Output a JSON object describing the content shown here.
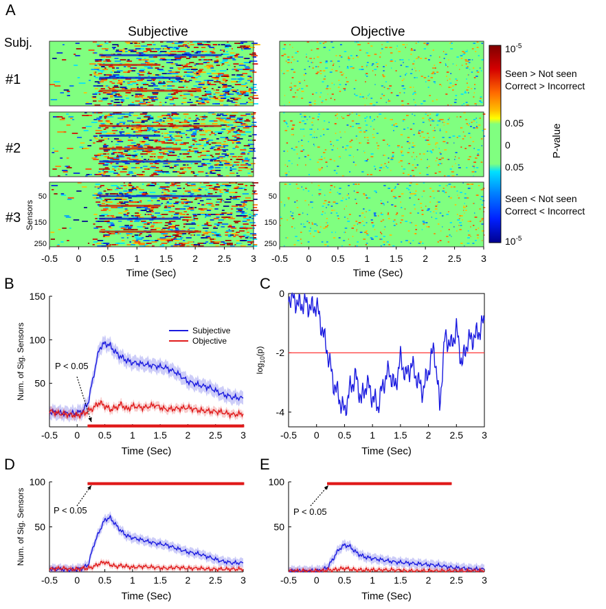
{
  "panels": {
    "A": "A",
    "B": "B",
    "C": "C",
    "D": "D",
    "E": "E"
  },
  "panel_a": {
    "col_left": "Subjective",
    "col_right": "Objective",
    "subj_label": "Subj.",
    "rows": [
      "#1",
      "#2",
      "#3"
    ],
    "sensor_axis_label": "Sensors",
    "sensor_ticks": [
      "50",
      "150",
      "250"
    ],
    "time_ticks": [
      "-0.5",
      "0",
      "0.5",
      "1",
      "1.5",
      "2",
      "2.5",
      "3"
    ],
    "xlabel": "Time (Sec)",
    "colorbar": {
      "top": "10",
      "top_exp": "-5",
      "upper_mid": "0.05",
      "zero": "0",
      "lower_mid": "0.05",
      "bottom": "10",
      "bottom_exp": "-5",
      "label": "P-value",
      "upper_text_1": "Seen > Not seen",
      "upper_text_2": "Correct > Incorrect",
      "lower_text_1": "Seen < Not seen",
      "lower_text_2": "Correct < Incorrect",
      "colors": [
        "#7f0000",
        "#d40000",
        "#ff6a00",
        "#ffc000",
        "#ffff00",
        "#80ff80",
        "#80ff80",
        "#00d0ff",
        "#0080ff",
        "#0020ff",
        "#00008f"
      ]
    }
  },
  "chart_data": [
    {
      "id": "B",
      "type": "line",
      "xlabel": "Time (Sec)",
      "ylabel": "Num. of Sig. Sensors",
      "xlim": [
        -0.5,
        3
      ],
      "ylim": [
        0,
        150
      ],
      "xticks": [
        "-0.5",
        "0",
        "0.5",
        "1",
        "1.5",
        "2",
        "2.5",
        "3"
      ],
      "yticks": [
        "50",
        "100",
        "150"
      ],
      "legend": "top-right",
      "annotation": "P < 0.05",
      "series": [
        {
          "name": "Subjective",
          "color": "#1a1adf",
          "x": [
            -0.5,
            -0.3,
            -0.1,
            0.0,
            0.1,
            0.2,
            0.3,
            0.4,
            0.5,
            0.6,
            0.7,
            0.8,
            0.9,
            1.0,
            1.2,
            1.4,
            1.6,
            1.8,
            2.0,
            2.2,
            2.4,
            2.6,
            2.8,
            3.0
          ],
          "y": [
            17,
            16,
            15,
            16,
            18,
            28,
            60,
            90,
            96,
            93,
            85,
            80,
            76,
            74,
            72,
            70,
            68,
            62,
            52,
            48,
            45,
            38,
            34,
            33
          ]
        },
        {
          "name": "Objective",
          "color": "#e01a1a",
          "x": [
            -0.5,
            -0.3,
            -0.1,
            0.0,
            0.1,
            0.2,
            0.3,
            0.4,
            0.5,
            0.6,
            0.7,
            0.8,
            0.9,
            1.0,
            1.2,
            1.4,
            1.6,
            1.8,
            2.0,
            2.2,
            2.4,
            2.6,
            2.8,
            3.0
          ],
          "y": [
            18,
            15,
            14,
            13,
            15,
            18,
            22,
            28,
            24,
            20,
            22,
            26,
            20,
            24,
            22,
            25,
            20,
            21,
            22,
            19,
            18,
            17,
            14,
            15
          ]
        }
      ],
      "sig_from": 0.2,
      "sig_to": 3.0,
      "sig_level": 1
    },
    {
      "id": "C",
      "type": "line",
      "xlabel": "Time (Sec)",
      "ylabel": "log10(p)",
      "xlim": [
        -0.5,
        3
      ],
      "ylim": [
        -4.5,
        0
      ],
      "xticks": [
        "-0.5",
        "0",
        "0.5",
        "1",
        "1.5",
        "2",
        "2.5",
        "3"
      ],
      "yticks": [
        "0",
        "-2",
        "-4"
      ],
      "threshold": -2,
      "series": [
        {
          "name": "",
          "color": "#1a1adf",
          "x": [
            -0.5,
            -0.4,
            -0.3,
            -0.2,
            -0.1,
            0.0,
            0.1,
            0.2,
            0.3,
            0.4,
            0.5,
            0.6,
            0.7,
            0.8,
            0.9,
            1.0,
            1.1,
            1.2,
            1.3,
            1.4,
            1.5,
            1.6,
            1.7,
            1.8,
            1.9,
            2.0,
            2.1,
            2.2,
            2.3,
            2.4,
            2.5,
            2.6,
            2.7,
            2.8,
            2.9,
            3.0
          ],
          "y": [
            -0.1,
            -0.2,
            -0.4,
            -0.3,
            -0.5,
            -0.4,
            -1.2,
            -2.0,
            -3.0,
            -3.5,
            -4.0,
            -3.2,
            -2.8,
            -3.6,
            -3.0,
            -3.5,
            -3.8,
            -3.0,
            -2.6,
            -3.2,
            -2.2,
            -2.8,
            -2.4,
            -2.9,
            -3.3,
            -2.6,
            -1.8,
            -3.8,
            -1.4,
            -1.8,
            -1.2,
            -2.4,
            -1.6,
            -1.5,
            -1.3,
            -0.9
          ]
        }
      ]
    },
    {
      "id": "D",
      "type": "line",
      "xlabel": "Time (Sec)",
      "ylabel": "Num. of Sig. Sensors",
      "xlim": [
        -0.5,
        3
      ],
      "ylim": [
        0,
        100
      ],
      "xticks": [
        "-0.5",
        "0",
        "0.5",
        "1",
        "1.5",
        "2",
        "2.5",
        "3"
      ],
      "yticks": [
        "50",
        "100"
      ],
      "annotation": "P < 0.05",
      "series": [
        {
          "name": "Subjective",
          "color": "#1a1adf",
          "x": [
            -0.5,
            -0.3,
            -0.1,
            0.0,
            0.1,
            0.2,
            0.3,
            0.4,
            0.5,
            0.6,
            0.7,
            0.8,
            0.9,
            1.0,
            1.2,
            1.4,
            1.6,
            1.8,
            2.0,
            2.2,
            2.4,
            2.6,
            2.8,
            3.0
          ],
          "y": [
            3,
            3,
            2,
            3,
            4,
            8,
            30,
            45,
            58,
            60,
            52,
            45,
            40,
            38,
            35,
            32,
            30,
            26,
            22,
            20,
            16,
            12,
            10,
            10
          ]
        },
        {
          "name": "Objective",
          "color": "#e01a1a",
          "x": [
            -0.5,
            -0.3,
            -0.1,
            0.0,
            0.1,
            0.2,
            0.3,
            0.4,
            0.5,
            0.6,
            0.7,
            0.8,
            0.9,
            1.0,
            1.2,
            1.4,
            1.6,
            1.8,
            2.0,
            2.2,
            2.4,
            2.6,
            2.8,
            3.0
          ],
          "y": [
            3,
            4,
            3,
            3,
            4,
            4,
            6,
            9,
            11,
            8,
            6,
            7,
            6,
            5,
            6,
            5,
            4,
            5,
            4,
            4,
            3,
            3,
            3,
            3
          ]
        }
      ],
      "sig_from": 0.2,
      "sig_to": 3.0,
      "sig_level": 98
    },
    {
      "id": "E",
      "type": "line",
      "xlabel": "Time (Sec)",
      "ylabel": "",
      "xlim": [
        -0.5,
        3
      ],
      "ylim": [
        0,
        100
      ],
      "xticks": [
        "-0.5",
        "0",
        "0.5",
        "1",
        "1.5",
        "2",
        "2.5",
        "3"
      ],
      "yticks": [
        "50",
        "100"
      ],
      "annotation": "P < 0.05",
      "series": [
        {
          "name": "Subjective",
          "color": "#1a1adf",
          "x": [
            -0.5,
            -0.3,
            -0.1,
            0.0,
            0.1,
            0.2,
            0.3,
            0.4,
            0.5,
            0.6,
            0.7,
            0.8,
            0.9,
            1.0,
            1.2,
            1.4,
            1.6,
            1.8,
            2.0,
            2.2,
            2.4,
            2.6,
            2.8,
            3.0
          ],
          "y": [
            1,
            1,
            1,
            1,
            2,
            5,
            15,
            25,
            30,
            28,
            22,
            18,
            16,
            15,
            13,
            11,
            10,
            9,
            8,
            7,
            5,
            4,
            3,
            3
          ]
        },
        {
          "name": "Objective",
          "color": "#e01a1a",
          "x": [
            -0.5,
            -0.3,
            -0.1,
            0.0,
            0.1,
            0.2,
            0.3,
            0.4,
            0.5,
            0.6,
            0.7,
            0.8,
            0.9,
            1.0,
            1.2,
            1.4,
            1.6,
            1.8,
            2.0,
            2.2,
            2.4,
            2.6,
            2.8,
            3.0
          ],
          "y": [
            1,
            1,
            1,
            1,
            1,
            2,
            2,
            3,
            4,
            3,
            2,
            2,
            2,
            2,
            2,
            2,
            1,
            1,
            1,
            1,
            1,
            1,
            1,
            1
          ]
        }
      ],
      "sig_from": 0.2,
      "sig_to": 2.4,
      "sig_level": 98
    }
  ]
}
